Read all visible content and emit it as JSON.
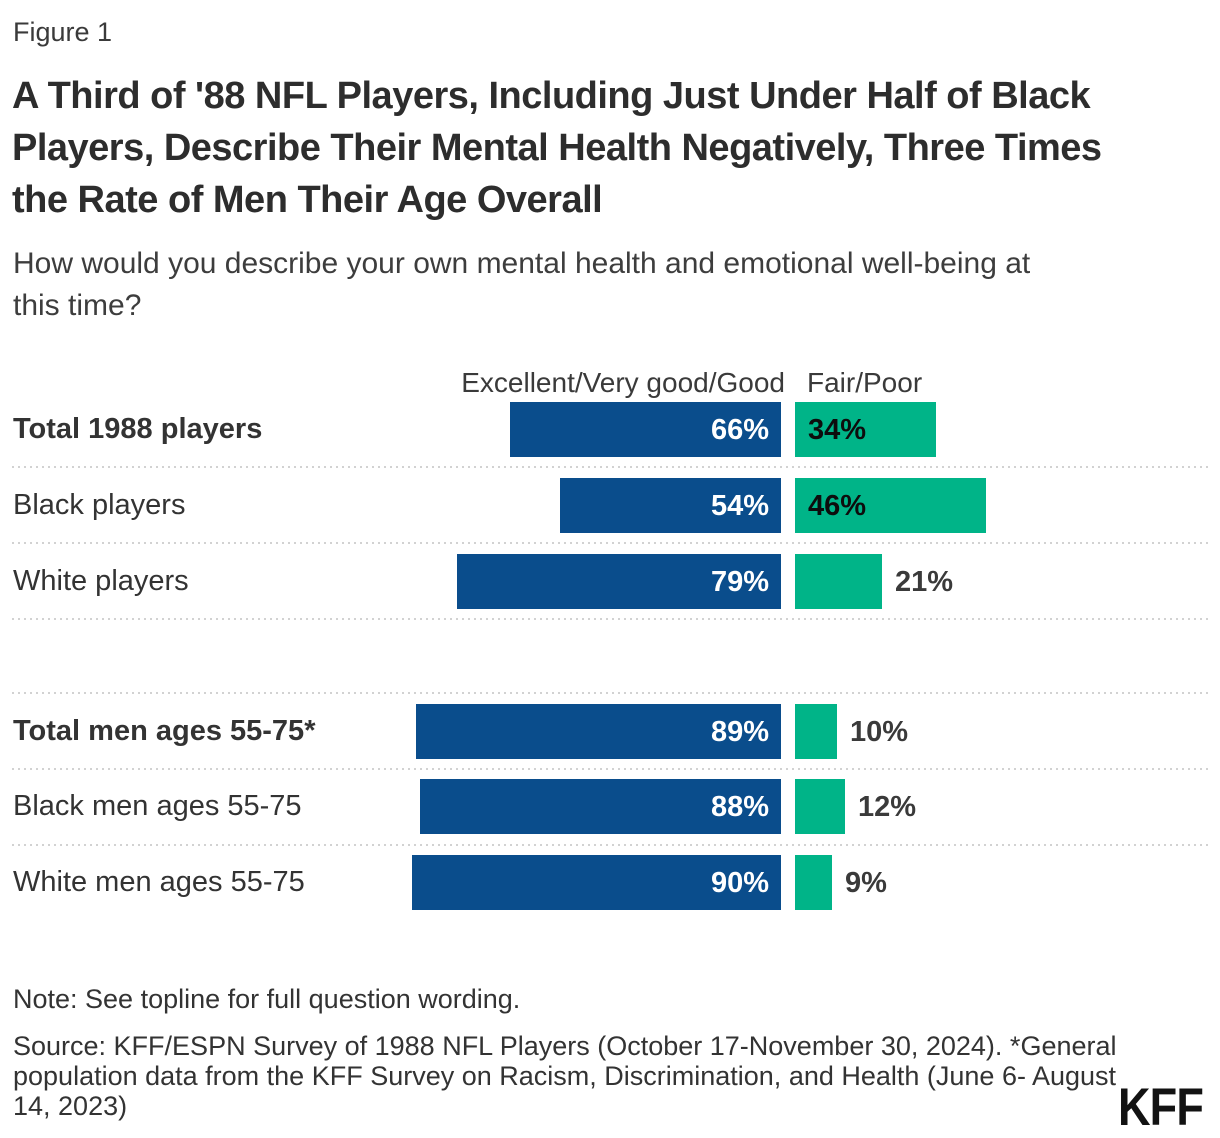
{
  "figure_label": "Figure 1",
  "title_lines": [
    "A Third of '88 NFL Players, Including Just Under Half of Black",
    "Players, Describe Their Mental Health Negatively, Three Times",
    "the Rate of Men Their Age Overall"
  ],
  "subtitle_lines": [
    "How would you describe your own mental health and emotional well-being at",
    "this time?"
  ],
  "chart_data": {
    "type": "bar",
    "orientation": "horizontal",
    "title": "A Third of '88 NFL Players, Including Just Under Half of Black Players, Describe Their Mental Health Negatively, Three Times the Rate of Men Their Age Overall",
    "question": "How would you describe your own mental health and emotional well-being at this time?",
    "categories": [
      "Total 1988 players",
      "Black players",
      "White players",
      "Total men ages 55-75*",
      "Black men ages 55-75",
      "White men ages 55-75"
    ],
    "bold_categories": [
      true,
      false,
      false,
      true,
      false,
      false
    ],
    "group_break_after_index": 2,
    "series": [
      {
        "name": "Excellent/Very good/Good",
        "color": "#0A4D8C",
        "values": [
          66,
          54,
          79,
          89,
          88,
          90
        ]
      },
      {
        "name": "Fair/Poor",
        "color": "#00B488",
        "values": [
          34,
          46,
          21,
          10,
          12,
          9
        ]
      }
    ],
    "value_suffix": "%",
    "xlim": [
      0,
      100
    ],
    "grid": "dotted-row-separators",
    "legend_position": "column-headers-top"
  },
  "note": "Note: See topline for full question wording.",
  "source_lines": [
    "Source: KFF/ESPN Survey of 1988 NFL Players (October 17-November 30, 2024). *General",
    "population data from the KFF Survey on Racism, Discrimination, and Health (June 6- August",
    "14, 2023)"
  ],
  "logo_text": "KFF",
  "colors": {
    "excellent_bar": "#0A4D8C",
    "fair_bar": "#00B488",
    "separator": "#d2d2d2",
    "text_dark": "#2d2d2d"
  }
}
